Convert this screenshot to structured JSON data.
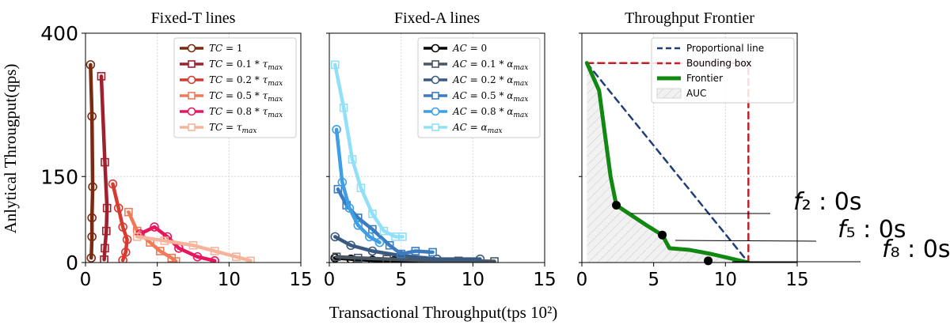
{
  "figure": {
    "xlabel": "Transactional Throughput(tps 10²)",
    "ylabel": "Anlytical Througput(qps)"
  },
  "chart_data": [
    {
      "type": "line",
      "title": "Fixed-T lines",
      "xlim": [
        0,
        15
      ],
      "ylim": [
        0,
        400
      ],
      "xticks": [
        "0",
        "5",
        "10",
        "15"
      ],
      "yticks": [
        "0",
        "150",
        "400"
      ],
      "grid": true,
      "legend_position": "top-right",
      "series": [
        {
          "name": "TC = 1",
          "color": "#7a2a10",
          "marker": "circle",
          "x": [
            0.35,
            0.45,
            0.5,
            0.45,
            0.45,
            0.4
          ],
          "y": [
            345,
            255,
            132,
            78,
            45,
            8
          ]
        },
        {
          "name": "TC = 0.1 * τmax",
          "color": "#a0202e",
          "marker": "square",
          "x": [
            1.1,
            1.35,
            1.5,
            1.45,
            1.35,
            1.3
          ],
          "y": [
            325,
            175,
            95,
            55,
            25,
            5
          ]
        },
        {
          "name": "TC = 0.2 * τmax",
          "color": "#d93a30",
          "marker": "circle",
          "x": [
            1.9,
            2.3,
            2.6,
            2.9,
            2.8,
            2.6
          ],
          "y": [
            137,
            95,
            62,
            40,
            18,
            4
          ]
        },
        {
          "name": "TC = 0.5 * τmax",
          "color": "#ef7a58",
          "marker": "square",
          "x": [
            3.0,
            3.6,
            4.5,
            5.2,
            6.0,
            6.3
          ],
          "y": [
            88,
            55,
            35,
            20,
            8,
            2
          ]
        },
        {
          "name": "TC = 0.8 * τmax",
          "color": "#e8175d",
          "marker": "circle",
          "x": [
            3.8,
            4.8,
            5.7,
            6.5,
            7.8,
            9.0
          ],
          "y": [
            50,
            62,
            45,
            25,
            10,
            3
          ]
        },
        {
          "name": "TC = τmax",
          "color": "#f5b49a",
          "marker": "square",
          "x": [
            3.6,
            5.5,
            7.5,
            9.0,
            10.5,
            11.5
          ],
          "y": [
            45,
            38,
            30,
            20,
            10,
            3
          ]
        }
      ]
    },
    {
      "type": "line",
      "title": "Fixed-A lines",
      "xlim": [
        0,
        15
      ],
      "ylim": [
        0,
        400
      ],
      "xticks": [
        "0",
        "5",
        "10",
        "15"
      ],
      "yticks": [],
      "grid": true,
      "legend_position": "top-right",
      "series": [
        {
          "name": "AC = 0",
          "color": "#000000",
          "marker": "circle",
          "x": [
            0.4,
            1.5,
            3.0,
            4.5,
            6.0,
            7.5
          ],
          "y": [
            8,
            6,
            4,
            3,
            2,
            1
          ]
        },
        {
          "name": "AC = 0.1 * αmax",
          "color": "#4a5662",
          "marker": "square",
          "x": [
            0.5,
            2.0,
            4.0,
            6.5,
            9.0,
            11.5
          ],
          "y": [
            10,
            8,
            6,
            4,
            3,
            2
          ]
        },
        {
          "name": "AC = 0.2 * αmax",
          "color": "#3a5a82",
          "marker": "circle",
          "x": [
            0.4,
            1.5,
            3.0,
            5.0,
            7.5,
            10.5
          ],
          "y": [
            45,
            30,
            20,
            12,
            6,
            6
          ]
        },
        {
          "name": "AC = 0.5 * αmax",
          "color": "#3a7cc0",
          "marker": "square",
          "x": [
            0.6,
            1.2,
            2.0,
            3.0,
            4.2,
            5.0,
            6.0,
            7.2
          ],
          "y": [
            128,
            100,
            78,
            58,
            30,
            15,
            20,
            18
          ]
        },
        {
          "name": "AC = 0.8 * αmax",
          "color": "#3e9ee6",
          "marker": "circle",
          "x": [
            0.5,
            0.9,
            1.4,
            2.0,
            2.8,
            3.5
          ],
          "y": [
            232,
            140,
            95,
            65,
            45,
            35
          ]
        },
        {
          "name": "AC = αmax",
          "color": "#90e0f8",
          "marker": "square",
          "x": [
            0.4,
            1.0,
            1.6,
            2.2,
            3.0,
            3.8,
            4.6,
            5.1
          ],
          "y": [
            345,
            270,
            180,
            130,
            85,
            55,
            45,
            45
          ]
        }
      ]
    },
    {
      "type": "line",
      "title": "Throughput Frontier",
      "xlim": [
        0,
        15
      ],
      "ylim": [
        0,
        400
      ],
      "xticks": [
        "0",
        "5",
        "10",
        "15"
      ],
      "yticks": [],
      "grid": true,
      "legend_position": "top-right",
      "series": [
        {
          "name": "Proportional line",
          "color": "#1f3f7a",
          "style": "dashed",
          "x": [
            0.35,
            11.6
          ],
          "y": [
            348,
            0
          ]
        },
        {
          "name": "Bounding box",
          "color": "#c0202a",
          "style": "dashed",
          "x": [
            0.35,
            11.6,
            11.6
          ],
          "y": [
            348,
            348,
            0
          ]
        },
        {
          "name": "Frontier",
          "color": "#118811",
          "style": "solid",
          "x": [
            0.35,
            1.2,
            2.0,
            2.4,
            4.5,
            5.6,
            6.1,
            7.5,
            9.0,
            11.6
          ],
          "y": [
            348,
            300,
            150,
            100,
            65,
            48,
            25,
            22,
            15,
            0
          ]
        }
      ],
      "auc_label": "AUC",
      "annotations": [
        {
          "label": "f₂ : 0s",
          "x": 2.4,
          "y": 100
        },
        {
          "label": "f₅ : 0s",
          "x": 5.6,
          "y": 48
        },
        {
          "label": "f₈ : 0s",
          "x": 8.8,
          "y": 3
        }
      ]
    }
  ]
}
